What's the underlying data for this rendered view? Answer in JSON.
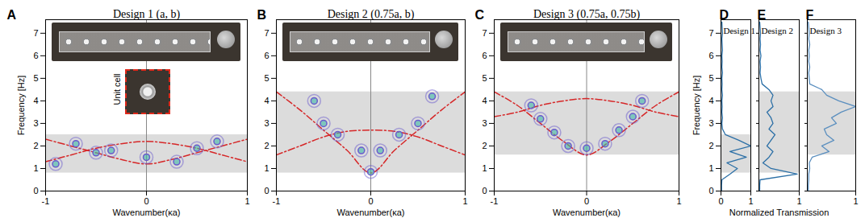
{
  "chart_data": [
    {
      "type": "line",
      "panel": "A",
      "title": "Design 1 (a, b)",
      "annotation": "Unit cell",
      "xlabel": "Wavenumber(κa)",
      "ylabel": "Frequency [Hz]",
      "xlim": [
        -1,
        1
      ],
      "xticks": [
        -1,
        0,
        1
      ],
      "ylim": [
        0,
        7.6
      ],
      "yticks": [
        0,
        1,
        2,
        3,
        4,
        5,
        6,
        7
      ],
      "band": [
        0.8,
        2.5
      ],
      "series": [
        {
          "color": "#d62728",
          "line_style": "dashdot",
          "x": [
            -1,
            -0.75,
            -0.5,
            -0.25,
            0,
            0.25,
            0.5,
            0.75,
            1
          ],
          "values": [
            2.3,
            2.0,
            1.7,
            1.4,
            1.2,
            1.4,
            1.7,
            2.0,
            2.3
          ]
        },
        {
          "color": "#d62728",
          "line_style": "dashdot",
          "x": [
            -1,
            -0.75,
            -0.5,
            -0.25,
            0,
            0.25,
            0.5,
            0.75,
            1
          ],
          "values": [
            1.3,
            1.6,
            1.9,
            2.1,
            2.2,
            2.1,
            1.9,
            1.6,
            1.3
          ]
        },
        {
          "type": "scatter",
          "color": "#6a5acd",
          "marker": "circle",
          "x": [
            -0.9,
            -0.7,
            -0.5,
            -0.35,
            0,
            0.3,
            0.5,
            0.7
          ],
          "values": [
            1.2,
            2.1,
            1.7,
            1.8,
            1.5,
            1.3,
            1.9,
            2.2
          ]
        }
      ]
    },
    {
      "type": "line",
      "panel": "B",
      "title": "Design 2 (0.75a, b)",
      "xlabel": "Wavenumber(κa)",
      "xlim": [
        -1,
        1
      ],
      "xticks": [
        -1,
        0,
        1
      ],
      "ylim": [
        0,
        7.6
      ],
      "yticks": [
        0,
        1,
        2,
        3,
        4,
        5,
        6,
        7
      ],
      "band": [
        0.8,
        4.4
      ],
      "series": [
        {
          "color": "#d62728",
          "line_style": "dashdot",
          "x": [
            -1,
            -0.75,
            -0.5,
            -0.25,
            0,
            0.25,
            0.5,
            0.75,
            1
          ],
          "values": [
            4.4,
            3.6,
            2.7,
            1.8,
            0.8,
            1.8,
            2.7,
            3.6,
            4.4
          ]
        },
        {
          "color": "#d62728",
          "line_style": "dashdot",
          "x": [
            -1,
            -0.75,
            -0.5,
            -0.25,
            0,
            0.25,
            0.5,
            0.75,
            1
          ],
          "values": [
            1.6,
            2.0,
            2.4,
            2.65,
            2.7,
            2.65,
            2.4,
            2.0,
            1.6
          ]
        },
        {
          "type": "scatter",
          "color": "#6a5acd",
          "marker": "circle",
          "x": [
            0,
            -0.35,
            0.3,
            -0.5,
            0.5,
            -0.6,
            0.65,
            -0.1,
            0.1
          ],
          "values": [
            0.85,
            2.5,
            2.5,
            3.0,
            3.0,
            4.0,
            4.2,
            1.8,
            1.8
          ]
        }
      ]
    },
    {
      "type": "line",
      "panel": "C",
      "title": "Design 3 (0.75a, 0.75b)",
      "xlabel": "Wavenumber(κa)",
      "xlim": [
        -1,
        1
      ],
      "xticks": [
        -1,
        0,
        1
      ],
      "ylim": [
        0,
        7.6
      ],
      "yticks": [
        0,
        1,
        2,
        3,
        4,
        5,
        6,
        7
      ],
      "band": [
        1.6,
        4.4
      ],
      "series": [
        {
          "color": "#d62728",
          "line_style": "dashdot",
          "x": [
            -1,
            -0.75,
            -0.5,
            -0.25,
            0,
            0.25,
            0.5,
            0.75,
            1
          ],
          "values": [
            4.4,
            3.8,
            3.0,
            2.2,
            1.6,
            2.2,
            3.0,
            3.8,
            4.4
          ]
        },
        {
          "color": "#d62728",
          "line_style": "dashdot",
          "x": [
            -1,
            -0.75,
            -0.5,
            -0.25,
            0,
            0.25,
            0.5,
            0.75,
            1
          ],
          "values": [
            3.3,
            3.5,
            3.8,
            4.0,
            4.1,
            4.0,
            3.8,
            3.5,
            3.3
          ]
        },
        {
          "type": "scatter",
          "color": "#6a5acd",
          "marker": "circle",
          "x": [
            -0.2,
            0,
            0.2,
            -0.35,
            0.35,
            -0.5,
            0.5,
            -0.6,
            0.6
          ],
          "values": [
            2.0,
            1.9,
            2.1,
            2.6,
            2.7,
            3.2,
            3.3,
            3.8,
            4.0
          ]
        }
      ]
    },
    {
      "type": "line",
      "panel": "D",
      "title": "Design 1",
      "ylabel": "Frequency [Hz]",
      "xlim": [
        0,
        1
      ],
      "xticks": [
        0,
        1
      ],
      "ylim": [
        0,
        7.6
      ],
      "yticks": [
        0,
        1,
        2,
        3,
        4,
        5,
        6,
        7
      ],
      "band": [
        0.8,
        2.5
      ],
      "color": "#2b6fa6",
      "y": [
        0,
        0.25,
        0.5,
        0.75,
        1,
        1.25,
        1.5,
        1.75,
        2,
        2.25,
        2.5,
        2.75,
        3,
        3.25,
        3.5,
        3.75,
        4,
        4.25,
        4.5,
        4.75,
        5,
        5.25,
        5.5,
        5.75,
        6,
        6.25,
        6.5,
        6.75,
        7,
        7.25,
        7.5
      ],
      "values": [
        0.02,
        0.02,
        0.03,
        0.3,
        0.55,
        0.2,
        0.85,
        0.3,
        1.0,
        0.6,
        0.15,
        0.05,
        0.03,
        0.05,
        0.03,
        0.04,
        0.03,
        0.05,
        0.03,
        0.04,
        0.03,
        0.05,
        0.03,
        0.04,
        0.03,
        0.05,
        0.04,
        0.03,
        0.05,
        0.04,
        0.03
      ]
    },
    {
      "type": "line",
      "panel": "E",
      "title": "Design 2",
      "xlabel": "Normalized Transmission",
      "tick_labels": "x",
      "xlim": [
        0,
        1
      ],
      "xticks": [
        1
      ],
      "ylim": [
        0,
        7.6
      ],
      "yticks": [
        0,
        1,
        2,
        3,
        4,
        5,
        6,
        7
      ],
      "band": [
        0.8,
        4.4
      ],
      "color": "#2b6fa6",
      "y": [
        0,
        0.25,
        0.5,
        0.75,
        1,
        1.25,
        1.5,
        1.75,
        2,
        2.25,
        2.5,
        2.75,
        3,
        3.25,
        3.5,
        3.75,
        4,
        4.25,
        4.5,
        4.75,
        5,
        5.25,
        5.5,
        5.75,
        6,
        6.25,
        6.5,
        6.75,
        7,
        7.25,
        7.5
      ],
      "values": [
        0.02,
        0.02,
        0.03,
        0.95,
        0.3,
        0.1,
        0.25,
        0.35,
        0.2,
        0.3,
        0.4,
        0.25,
        0.35,
        0.3,
        0.2,
        0.35,
        0.3,
        0.35,
        0.25,
        0.08,
        0.05,
        0.03,
        0.04,
        0.03,
        0.05,
        0.03,
        0.04,
        0.03,
        0.04,
        0.03,
        0.02
      ]
    },
    {
      "type": "line",
      "panel": "F",
      "title": "Design 3",
      "tick_labels": "x",
      "xlim": [
        0,
        1
      ],
      "xticks": [
        1
      ],
      "ylim": [
        0,
        7.6
      ],
      "yticks": [
        0,
        1,
        2,
        3,
        4,
        5,
        6,
        7
      ],
      "band": [
        1.6,
        4.4
      ],
      "color": "#5b8fbf",
      "y": [
        0,
        0.25,
        0.5,
        0.75,
        1,
        1.25,
        1.5,
        1.75,
        2,
        2.25,
        2.5,
        2.75,
        3,
        3.25,
        3.5,
        3.75,
        4,
        4.25,
        4.5,
        4.75,
        5,
        5.25,
        5.5,
        5.75,
        6,
        6.25,
        6.5,
        6.75,
        7,
        7.25,
        7.5
      ],
      "values": [
        0.02,
        0.02,
        0.03,
        0.03,
        0.05,
        0.04,
        0.1,
        0.45,
        0.3,
        0.55,
        0.4,
        0.35,
        0.6,
        0.5,
        0.7,
        1.0,
        0.65,
        0.4,
        0.3,
        0.05,
        0.04,
        0.03,
        0.05,
        0.03,
        0.04,
        0.03,
        0.05,
        0.03,
        0.04,
        0.03,
        0.02
      ]
    }
  ]
}
